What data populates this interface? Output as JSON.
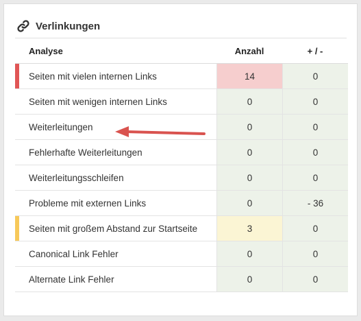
{
  "card": {
    "title": "Verlinkungen",
    "icon": "link-icon"
  },
  "table": {
    "headers": {
      "analyse": "Analyse",
      "anzahl": "Anzahl",
      "delta": "+ / -"
    },
    "rows": [
      {
        "label": "Seiten mit vielen internen Links",
        "anzahl": "14",
        "delta": "0",
        "status": "red"
      },
      {
        "label": "Seiten mit wenigen internen Links",
        "anzahl": "0",
        "delta": "0",
        "status": "none"
      },
      {
        "label": "Weiterleitungen",
        "anzahl": "0",
        "delta": "0",
        "status": "none"
      },
      {
        "label": "Fehlerhafte Weiterleitungen",
        "anzahl": "0",
        "delta": "0",
        "status": "none"
      },
      {
        "label": "Weiterleitungsschleifen",
        "anzahl": "0",
        "delta": "0",
        "status": "none"
      },
      {
        "label": "Probleme mit externen Links",
        "anzahl": "0",
        "delta": "- 36",
        "status": "none"
      },
      {
        "label": "Seiten mit großem Abstand zur Startseite",
        "anzahl": "3",
        "delta": "0",
        "status": "yellow"
      },
      {
        "label": "Canonical Link Fehler",
        "anzahl": "0",
        "delta": "0",
        "status": "none"
      },
      {
        "label": "Alternate Link Fehler",
        "anzahl": "0",
        "delta": "0",
        "status": "none"
      }
    ]
  },
  "colors": {
    "red_marker": "#e05656",
    "yellow_marker": "#f7c95a",
    "red_cell": "#f6cece",
    "yellow_cell": "#fbf5d4",
    "green_cell": "#edf2e9",
    "arrow": "#d9534f"
  },
  "annotation": {
    "icon": "arrow-left-icon",
    "points_to": "Weiterleitungen"
  }
}
